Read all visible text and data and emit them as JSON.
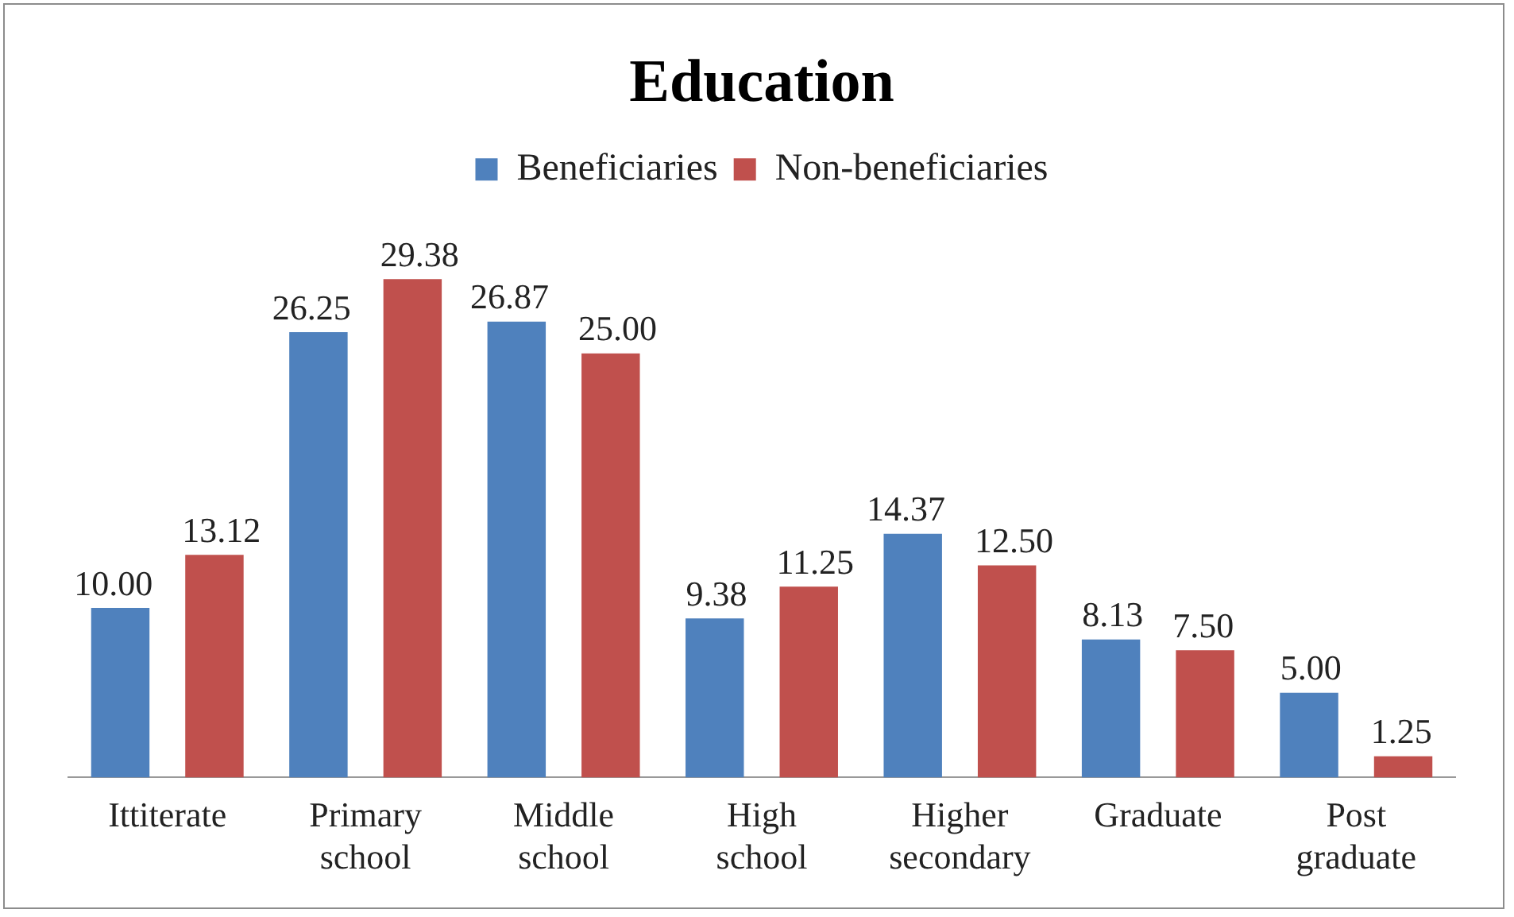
{
  "chart_data": {
    "type": "bar",
    "title": "Education",
    "categories": [
      "Ittiterate",
      "Primary school",
      "Middle school",
      "High school",
      "Higher secondary",
      "Graduate",
      "Post graduate"
    ],
    "series": [
      {
        "name": "Beneficiaries",
        "color": "#4f81bd",
        "values": [
          10.0,
          26.25,
          26.87,
          9.38,
          14.37,
          8.13,
          5.0
        ],
        "value_labels": [
          "10.00",
          "26.25",
          "26.87",
          "9.38",
          "14.37",
          "8.13",
          "5.00"
        ]
      },
      {
        "name": "Non-beneficiaries",
        "color": "#c0504d",
        "values": [
          13.12,
          29.38,
          25.0,
          11.25,
          12.5,
          7.5,
          1.25
        ],
        "value_labels": [
          "13.12",
          "29.38",
          "25.00",
          "11.25",
          "12.50",
          "7.50",
          "1.25"
        ]
      }
    ],
    "legend": "top",
    "grid": false
  }
}
